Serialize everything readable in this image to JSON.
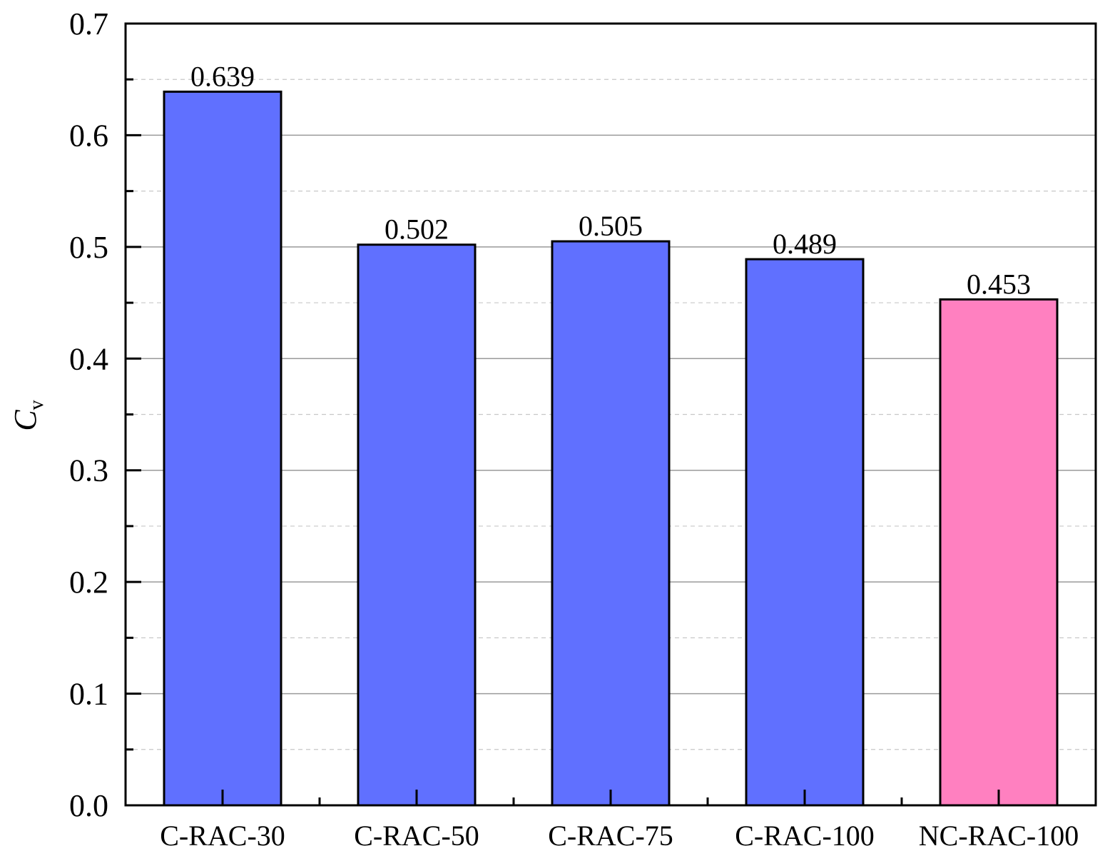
{
  "chart_data": {
    "type": "bar",
    "title": "",
    "xlabel": "",
    "ylabel": "C",
    "ylabel_subscript": "v",
    "categories": [
      "C-RAC-30",
      "C-RAC-50",
      "C-RAC-75",
      "C-RAC-100",
      "NC-RAC-100"
    ],
    "values": [
      0.639,
      0.502,
      0.505,
      0.489,
      0.453
    ],
    "data_labels": [
      "0.639",
      "0.502",
      "0.505",
      "0.489",
      "0.453"
    ],
    "bar_colors": [
      "#6070ff",
      "#6070ff",
      "#6070ff",
      "#6070ff",
      "#ff80c0"
    ],
    "ylim": [
      0.0,
      0.7
    ],
    "yticks": [
      "0.0",
      "0.1",
      "0.2",
      "0.3",
      "0.4",
      "0.5",
      "0.6",
      "0.7"
    ],
    "grid": "major solid, minor dashed (horizontal)",
    "legend": "none"
  }
}
